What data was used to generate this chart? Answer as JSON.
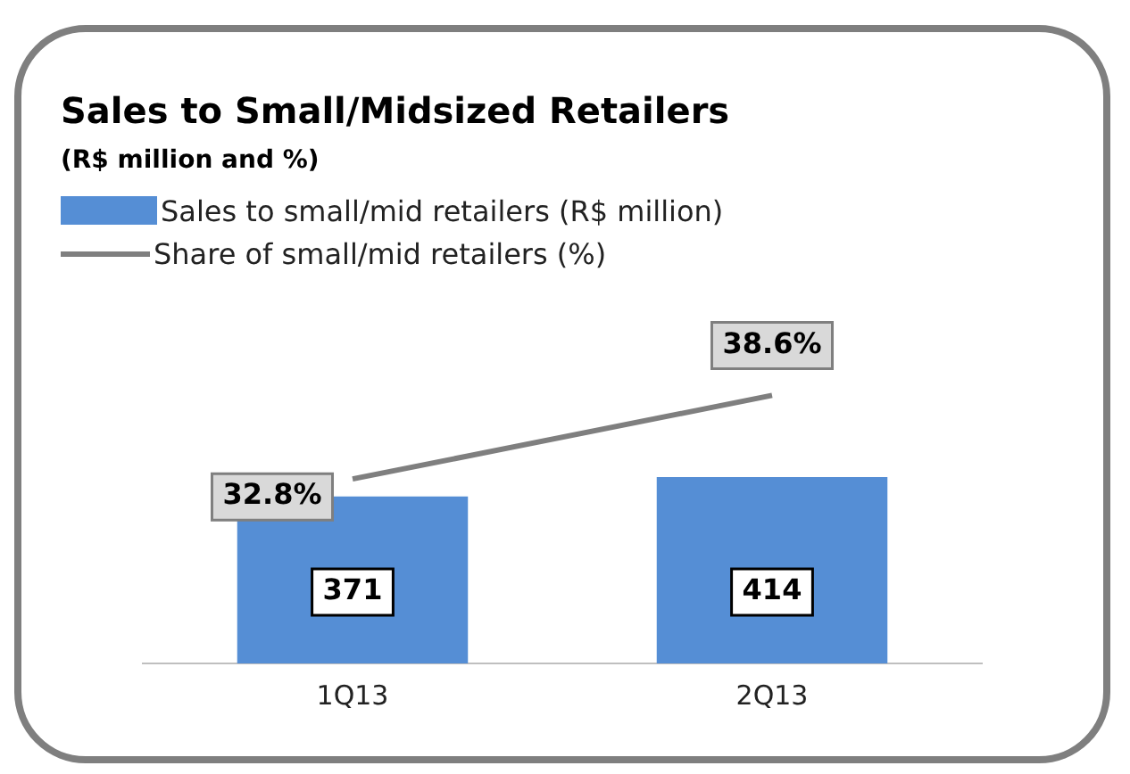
{
  "chart_data": {
    "type": "bar",
    "title": "Sales to Small/Midsized Retailers",
    "subtitle": "(R$ million and %)",
    "categories": [
      "1Q13",
      "2Q13"
    ],
    "series": [
      {
        "name": "Sales to small/mid retailers (R$ million)",
        "color": "#558ed5",
        "values": [
          371,
          414
        ],
        "value_labels": [
          "371",
          "414"
        ]
      },
      {
        "name": "Share of small/mid retailers (%)",
        "type": "line",
        "axis": "y2",
        "color": "#7f7f7f",
        "values": [
          32.8,
          38.6
        ],
        "value_labels": [
          "32.8%",
          "38.6%"
        ]
      }
    ],
    "legend": "top left",
    "tick_labels": "x",
    "grid": false,
    "marker": "none"
  }
}
